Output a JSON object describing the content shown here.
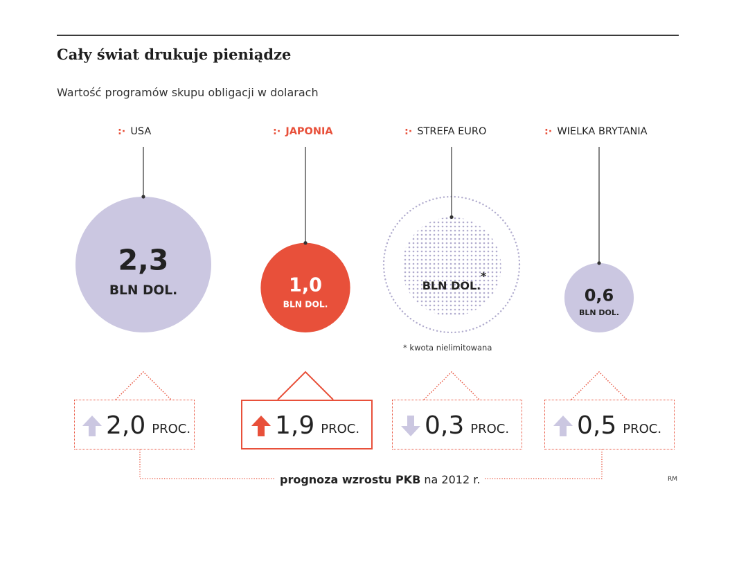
{
  "header": {
    "title": "Cały świat drukuje pieniądze",
    "subtitle": "Wartość programów skupu obligacji w dolarach"
  },
  "colors": {
    "accent": "#e8503a",
    "lavender": "#cbc7e1",
    "dots": "#b1acce",
    "text": "#222222"
  },
  "chart_data": {
    "type": "bubble",
    "title": "Cały świat drukuje pieniądze",
    "subtitle": "Wartość programów skupu obligacji w dolarach",
    "unit": "BLN DOL.",
    "series": [
      {
        "name": "USA",
        "value": 2.3,
        "label": "2,3",
        "unit_label": "BLN DOL.",
        "highlight": false,
        "growth": 2.0,
        "growth_label": "2,0",
        "growth_unit": "PROC.",
        "direction": "up"
      },
      {
        "name": "JAPONIA",
        "value": 1.0,
        "label": "1,0",
        "unit_label": "BLN DOL.",
        "highlight": true,
        "growth": 1.9,
        "growth_label": "1,9",
        "growth_unit": "PROC.",
        "direction": "up"
      },
      {
        "name": "STREFA EURO",
        "value": null,
        "label": "",
        "unit_label": "BLN DOL.",
        "asterisk": "*",
        "unlimited": true,
        "highlight": false,
        "growth": -0.3,
        "growth_label": "0,3",
        "growth_unit": "PROC.",
        "direction": "down"
      },
      {
        "name": "WIELKA BRYTANIA",
        "value": 0.6,
        "label": "0,6",
        "unit_label": "BLN DOL.",
        "highlight": false,
        "growth": 0.5,
        "growth_label": "0,5",
        "growth_unit": "PROC.",
        "direction": "up"
      }
    ],
    "footnote": "* kwota nielimitowana",
    "growth_caption_bold": "prognoza wzrostu PKB",
    "growth_caption_rest": " na 2012 r.",
    "credit": "RM"
  }
}
